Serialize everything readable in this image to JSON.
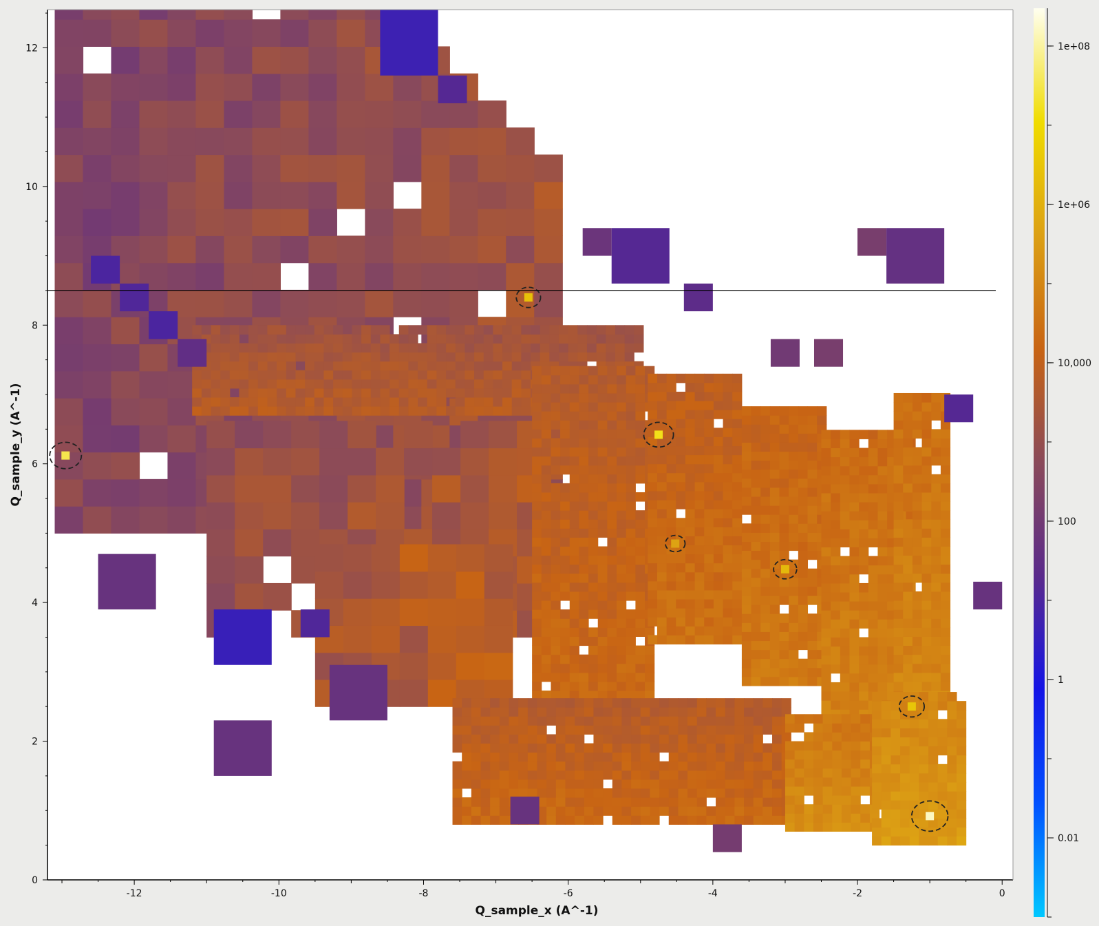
{
  "chart_data": {
    "type": "heatmap",
    "title": "",
    "xlabel": "Q_sample_x (A^-1)",
    "ylabel": "Q_sample_y (A^-1)",
    "xlim": [
      -13.2,
      0.15
    ],
    "ylim": [
      0,
      12.55
    ],
    "x_ticks": [
      -12,
      -10,
      -8,
      -6,
      -4,
      -2,
      0
    ],
    "x_tick_labels": [
      "-12",
      "-10",
      "-8",
      "-6",
      "-4",
      "-2",
      "0"
    ],
    "y_ticks": [
      0,
      2,
      4,
      6,
      8,
      10,
      12
    ],
    "y_tick_labels": [
      "0",
      "2",
      "4",
      "6",
      "8",
      "10",
      "12"
    ],
    "colorbar": {
      "scale": "log",
      "range": [
        0.001,
        300000000
      ],
      "ticks": [
        0.01,
        1,
        100,
        10000,
        1000000,
        100000000
      ],
      "tick_labels": [
        "0.01",
        "1",
        "100",
        "10,000",
        "1e+06",
        "1e+08"
      ],
      "colors": [
        "#00c8ff",
        "#0050ff",
        "#1414e6",
        "#5a2a8c",
        "#8a4a5a",
        "#c86414",
        "#dca014",
        "#f0dc00",
        "#fffff0"
      ]
    },
    "horizontal_line_y": 8.5,
    "peak_markers": [
      {
        "x": -12.95,
        "y": 6.12,
        "intensity": 2000000
      },
      {
        "x": -6.55,
        "y": 8.4,
        "intensity": 150000
      },
      {
        "x": -4.75,
        "y": 6.42,
        "intensity": 1000000
      },
      {
        "x": -4.52,
        "y": 4.85,
        "intensity": 30000
      },
      {
        "x": -3.0,
        "y": 4.48,
        "intensity": 100000
      },
      {
        "x": -1.25,
        "y": 2.5,
        "intensity": 200000
      },
      {
        "x": -1.0,
        "y": 0.92,
        "intensity": 10000000
      }
    ],
    "coarse_zones": [
      {
        "x0": -13.1,
        "x1": -6.3,
        "y0": 5.0,
        "y1": 12.55,
        "log_intensity": 2.5
      },
      {
        "x0": -11.0,
        "x1": -6.5,
        "y0": 3.5,
        "y1": 6.5,
        "log_intensity": 2.8
      },
      {
        "x0": -9.5,
        "x1": -6.8,
        "y0": 2.5,
        "y1": 4.5,
        "log_intensity": 3.1
      }
    ],
    "low_count_cells": [
      {
        "x0": -8.6,
        "x1": -7.8,
        "y0": 11.6,
        "y1": 12.55,
        "log_intensity": 0.7
      },
      {
        "x0": -7.8,
        "x1": -7.4,
        "y0": 11.2,
        "y1": 11.6,
        "log_intensity": 1.2
      },
      {
        "x0": -12.6,
        "x1": -12.2,
        "y0": 8.6,
        "y1": 9.0,
        "log_intensity": 1.0
      },
      {
        "x0": -12.2,
        "x1": -11.8,
        "y0": 8.2,
        "y1": 8.6,
        "log_intensity": 1.1
      },
      {
        "x0": -11.8,
        "x1": -11.4,
        "y0": 7.8,
        "y1": 8.2,
        "log_intensity": 1.0
      },
      {
        "x0": -11.4,
        "x1": -11.0,
        "y0": 7.4,
        "y1": 7.8,
        "log_intensity": 1.5
      },
      {
        "x0": -10.9,
        "x1": -10.1,
        "y0": 3.1,
        "y1": 3.9,
        "log_intensity": 0.6
      },
      {
        "x0": -9.7,
        "x1": -9.3,
        "y0": 3.5,
        "y1": 3.9,
        "log_intensity": 1.1
      },
      {
        "x0": -12.5,
        "x1": -11.7,
        "y0": 3.9,
        "y1": 4.7,
        "log_intensity": 1.7
      },
      {
        "x0": -9.3,
        "x1": -8.5,
        "y0": 2.3,
        "y1": 3.1,
        "log_intensity": 1.7
      },
      {
        "x0": -10.9,
        "x1": -10.1,
        "y0": 1.5,
        "y1": 2.3,
        "log_intensity": 1.7
      },
      {
        "x0": -5.4,
        "x1": -4.6,
        "y0": 8.6,
        "y1": 9.4,
        "log_intensity": 1.2
      },
      {
        "x0": -5.8,
        "x1": -5.4,
        "y0": 9.0,
        "y1": 9.4,
        "log_intensity": 1.8
      },
      {
        "x0": -1.6,
        "x1": -0.8,
        "y0": 8.6,
        "y1": 9.4,
        "log_intensity": 1.6
      },
      {
        "x0": -2.0,
        "x1": -1.6,
        "y0": 9.0,
        "y1": 9.4,
        "log_intensity": 2.2
      },
      {
        "x0": -4.4,
        "x1": -4.0,
        "y0": 8.2,
        "y1": 8.6,
        "log_intensity": 1.4
      },
      {
        "x0": -0.8,
        "x1": -0.4,
        "y0": 6.6,
        "y1": 7.0,
        "log_intensity": 1.2
      },
      {
        "x0": -0.4,
        "x1": 0.0,
        "y0": 3.9,
        "y1": 4.3,
        "log_intensity": 1.7
      },
      {
        "x0": -6.8,
        "x1": -6.4,
        "y0": 0.8,
        "y1": 1.2,
        "log_intensity": 1.7
      },
      {
        "x0": -4.0,
        "x1": -3.6,
        "y0": 0.4,
        "y1": 0.8,
        "log_intensity": 2.1
      },
      {
        "x0": -3.2,
        "x1": -2.8,
        "y0": 7.4,
        "y1": 7.8,
        "log_intensity": 2.0
      },
      {
        "x0": -2.6,
        "x1": -2.2,
        "y0": 7.4,
        "y1": 7.8,
        "log_intensity": 2.2
      }
    ],
    "detector_panels": [
      {
        "x_left": -11.2,
        "x_right": -5.0,
        "y_top": 7.95,
        "y_bottom": 6.7,
        "log_intensity": 3.8
      },
      {
        "x_left": -6.5,
        "x_right": -4.9,
        "y_top": 7.4,
        "y_bottom": 2.6,
        "log_intensity": 4.3
      },
      {
        "x_left": -4.9,
        "x_right": -3.6,
        "y_top": 7.2,
        "y_bottom": 3.4,
        "log_intensity": 4.5
      },
      {
        "x_left": -3.6,
        "x_right": -2.5,
        "y_top": 6.8,
        "y_bottom": 2.8,
        "log_intensity": 4.7
      },
      {
        "x_left": -2.5,
        "x_right": -1.3,
        "y_top": 6.4,
        "y_bottom": 2.2,
        "log_intensity": 4.9
      },
      {
        "x_left": -1.5,
        "x_right": -0.8,
        "y_top": 7.0,
        "y_bottom": 2.6,
        "log_intensity": 5.0
      },
      {
        "x_left": -7.6,
        "x_right": -3.0,
        "y_top": 2.6,
        "y_bottom": 0.8,
        "log_intensity": 4.3
      },
      {
        "x_left": -3.0,
        "x_right": -1.8,
        "y_top": 2.3,
        "y_bottom": 0.7,
        "log_intensity": 5.2
      },
      {
        "x_left": -1.8,
        "x_right": -0.5,
        "y_top": 2.7,
        "y_bottom": 0.5,
        "log_intensity": 5.5
      }
    ]
  }
}
